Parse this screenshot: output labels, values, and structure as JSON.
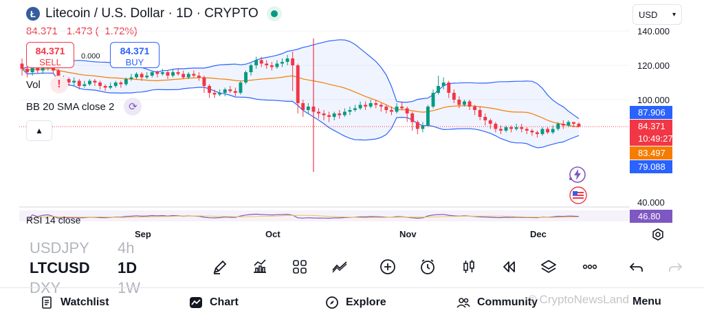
{
  "header": {
    "logo_letter": "Ł",
    "title": "Litecoin / U.S. Dollar · 1D · CRYPTO",
    "price_line": "84.371  −1.473 (−1.72%)",
    "currency": "USD"
  },
  "trade": {
    "sell_price": "84.371",
    "sell_label": "SELL",
    "spread": "0.000",
    "buy_price": "84.371",
    "buy_label": "BUY"
  },
  "indicators": {
    "volume": "Vol",
    "bb": "BB 20 SMA close 2",
    "rsi": "RSI 14 close"
  },
  "price_axis": {
    "labels": [
      "140.000",
      "120.000",
      "100.000",
      "40.000"
    ],
    "tags": {
      "bb_upper": "87.906",
      "last_price": "84.371",
      "countdown": "10:49:27",
      "bb_basis": "83.497",
      "bb_lower": "79.088",
      "rsi": "46.80"
    }
  },
  "time_axis": [
    "Sep",
    "Oct",
    "Nov",
    "Dec"
  ],
  "symbol_picker": {
    "prev": {
      "symbol": "USDJPY",
      "interval": "4h"
    },
    "current": {
      "symbol": "LTCUSD",
      "interval": "1D"
    },
    "next": {
      "symbol": "DXY",
      "interval": "1W"
    }
  },
  "toolbar_icons": [
    "draw-icon",
    "indicators-icon",
    "layouts-icon",
    "compare-icon",
    "add-icon",
    "alert-icon",
    "candles-icon",
    "replay-icon",
    "layers-icon",
    "more-icon",
    "undo-icon",
    "redo-icon"
  ],
  "nav": {
    "watchlist": "Watchlist",
    "chart": "Chart",
    "explore": "Explore",
    "community": "Community",
    "menu": "Menu"
  },
  "watermark": "CryptoNewsLand",
  "colors": {
    "up": "#089981",
    "down": "#f23645",
    "bb_band": "#2962ff",
    "bb_basis": "#f57c00",
    "rsi": "#7e57c2"
  },
  "chart_data": {
    "type": "candlestick",
    "symbol": "LTCUSD",
    "interval": "1D",
    "ylim": [
      40,
      145
    ],
    "x_labels": [
      "Sep",
      "Oct",
      "Nov",
      "Dec"
    ],
    "candles": [
      [
        121,
        118,
        124,
        114
      ],
      [
        118,
        116,
        121,
        113
      ],
      [
        116,
        119,
        121,
        114
      ],
      [
        119,
        117,
        121,
        115
      ],
      [
        117,
        119,
        121,
        115
      ],
      [
        119,
        120,
        123,
        117
      ],
      [
        120,
        117,
        122,
        115
      ],
      [
        117,
        110,
        118,
        108
      ],
      [
        110,
        112,
        114,
        107
      ],
      [
        112,
        110,
        113,
        108
      ],
      [
        110,
        111,
        113,
        108
      ],
      [
        111,
        108,
        112,
        106
      ],
      [
        108,
        109,
        111,
        107
      ],
      [
        109,
        111,
        112,
        108
      ],
      [
        111,
        110,
        112,
        108
      ],
      [
        110,
        108,
        111,
        106
      ],
      [
        108,
        107,
        109,
        105
      ],
      [
        107,
        108,
        110,
        106
      ],
      [
        108,
        110,
        111,
        107
      ],
      [
        110,
        109,
        111,
        107
      ],
      [
        109,
        112,
        113,
        108
      ],
      [
        112,
        113,
        115,
        111
      ],
      [
        113,
        115,
        116,
        112
      ],
      [
        115,
        113,
        116,
        111
      ],
      [
        113,
        114,
        116,
        112
      ],
      [
        114,
        116,
        117,
        113
      ],
      [
        116,
        115,
        117,
        113
      ],
      [
        115,
        116,
        118,
        114
      ],
      [
        116,
        114,
        117,
        112
      ],
      [
        114,
        116,
        118,
        113
      ],
      [
        116,
        115,
        118,
        114
      ],
      [
        115,
        113,
        117,
        112
      ],
      [
        113,
        115,
        116,
        112
      ],
      [
        115,
        114,
        117,
        113
      ],
      [
        114,
        113,
        116,
        111
      ],
      [
        113,
        108,
        114,
        104
      ],
      [
        108,
        104,
        109,
        101
      ],
      [
        104,
        103,
        106,
        101
      ],
      [
        103,
        104,
        106,
        102
      ],
      [
        104,
        106,
        107,
        102
      ],
      [
        106,
        105,
        108,
        104
      ],
      [
        105,
        104,
        107,
        102
      ],
      [
        104,
        110,
        111,
        103
      ],
      [
        110,
        116,
        117,
        109
      ],
      [
        116,
        120,
        121,
        114
      ],
      [
        120,
        123,
        125,
        118
      ],
      [
        123,
        121,
        125,
        119
      ],
      [
        121,
        120,
        123,
        118
      ],
      [
        120,
        119,
        122,
        117
      ],
      [
        119,
        121,
        123,
        118
      ],
      [
        121,
        122,
        124,
        119
      ],
      [
        122,
        124,
        126,
        120
      ],
      [
        124,
        120,
        128,
        105
      ],
      [
        120,
        98,
        121,
        92
      ],
      [
        98,
        94,
        100,
        90
      ],
      [
        94,
        96,
        98,
        92
      ],
      [
        96,
        93,
        98,
        90
      ],
      [
        93,
        92,
        95,
        89
      ],
      [
        92,
        91,
        94,
        88
      ],
      [
        91,
        90,
        93,
        87
      ],
      [
        90,
        92,
        93,
        88
      ],
      [
        92,
        91,
        94,
        89
      ],
      [
        91,
        93,
        95,
        90
      ],
      [
        93,
        94,
        96,
        91
      ],
      [
        94,
        95,
        97,
        93
      ],
      [
        95,
        97,
        99,
        94
      ],
      [
        97,
        96,
        99,
        94
      ],
      [
        96,
        98,
        100,
        95
      ],
      [
        98,
        97,
        100,
        95
      ],
      [
        97,
        96,
        98,
        93
      ],
      [
        96,
        94,
        97,
        92
      ],
      [
        94,
        93,
        96,
        91
      ],
      [
        93,
        96,
        98,
        92
      ],
      [
        96,
        95,
        99,
        94
      ],
      [
        95,
        92,
        96,
        87
      ],
      [
        92,
        87,
        93,
        82
      ],
      [
        87,
        83,
        88,
        80
      ],
      [
        83,
        85,
        87,
        81
      ],
      [
        85,
        96,
        97,
        84
      ],
      [
        96,
        104,
        106,
        95
      ],
      [
        104,
        108,
        114,
        103
      ],
      [
        108,
        110,
        113,
        106
      ],
      [
        110,
        104,
        111,
        101
      ],
      [
        104,
        100,
        106,
        98
      ],
      [
        100,
        97,
        102,
        95
      ],
      [
        97,
        99,
        100,
        96
      ],
      [
        99,
        96,
        100,
        94
      ],
      [
        96,
        94,
        97,
        91
      ],
      [
        94,
        90,
        96,
        88
      ],
      [
        90,
        88,
        92,
        85
      ],
      [
        88,
        86,
        89,
        83
      ],
      [
        86,
        83,
        87,
        81
      ],
      [
        83,
        82,
        85,
        80
      ],
      [
        82,
        84,
        85,
        81
      ],
      [
        84,
        83,
        85,
        81
      ],
      [
        83,
        84,
        86,
        82
      ],
      [
        84,
        83,
        86,
        81
      ],
      [
        83,
        82,
        84,
        80
      ],
      [
        82,
        81,
        83,
        79
      ],
      [
        81,
        80,
        82,
        78
      ],
      [
        80,
        83,
        84,
        79
      ],
      [
        83,
        81,
        84,
        80
      ],
      [
        81,
        83,
        85,
        80
      ],
      [
        83,
        86,
        87,
        82
      ],
      [
        86,
        85,
        88,
        83
      ],
      [
        85,
        87,
        88,
        84
      ],
      [
        87,
        86,
        87,
        84
      ],
      [
        86,
        84.371,
        87,
        84
      ]
    ]
  }
}
